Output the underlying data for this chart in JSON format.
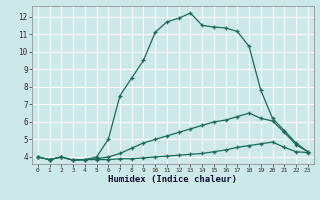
{
  "xlabel": "Humidex (Indice chaleur)",
  "background_color": "#cce8e8",
  "grid_color": "#ffffff",
  "line_color": "#1a6b5a",
  "xlim": [
    -0.5,
    23.5
  ],
  "ylim": [
    3.6,
    12.6
  ],
  "xticks": [
    0,
    1,
    2,
    3,
    4,
    5,
    6,
    7,
    8,
    9,
    10,
    11,
    12,
    13,
    14,
    15,
    16,
    17,
    18,
    19,
    20,
    21,
    22,
    23
  ],
  "yticks": [
    4,
    5,
    6,
    7,
    8,
    9,
    10,
    11,
    12
  ],
  "series1_x": [
    0,
    1,
    2,
    3,
    4,
    5,
    6,
    7,
    8,
    9,
    10,
    11,
    12,
    13,
    14,
    15,
    16,
    17,
    18,
    19,
    20,
    21,
    22,
    23
  ],
  "series1_y": [
    4.0,
    3.85,
    4.0,
    3.82,
    3.85,
    3.85,
    3.85,
    3.9,
    3.9,
    3.95,
    4.0,
    4.05,
    4.1,
    4.15,
    4.2,
    4.3,
    4.4,
    4.55,
    4.65,
    4.75,
    4.85,
    4.55,
    4.3,
    4.25
  ],
  "series2_x": [
    0,
    1,
    2,
    3,
    4,
    5,
    6,
    7,
    8,
    9,
    10,
    11,
    12,
    13,
    14,
    15,
    16,
    17,
    18,
    19,
    20,
    21,
    22,
    23
  ],
  "series2_y": [
    4.0,
    3.85,
    4.0,
    3.82,
    3.85,
    3.9,
    4.0,
    4.2,
    4.5,
    4.8,
    5.0,
    5.2,
    5.4,
    5.6,
    5.8,
    6.0,
    6.1,
    6.3,
    6.5,
    6.2,
    6.05,
    5.4,
    4.7,
    4.3
  ],
  "series3_x": [
    0,
    1,
    2,
    3,
    4,
    5,
    6,
    7,
    8,
    9,
    10,
    11,
    12,
    13,
    14,
    15,
    16,
    17,
    18,
    19,
    20,
    21,
    22,
    23
  ],
  "series3_y": [
    4.0,
    3.85,
    4.0,
    3.82,
    3.85,
    4.0,
    5.0,
    7.5,
    8.5,
    9.5,
    11.1,
    11.7,
    11.9,
    12.2,
    11.5,
    11.4,
    11.35,
    11.15,
    10.3,
    7.8,
    6.2,
    5.5,
    4.8,
    4.3
  ]
}
